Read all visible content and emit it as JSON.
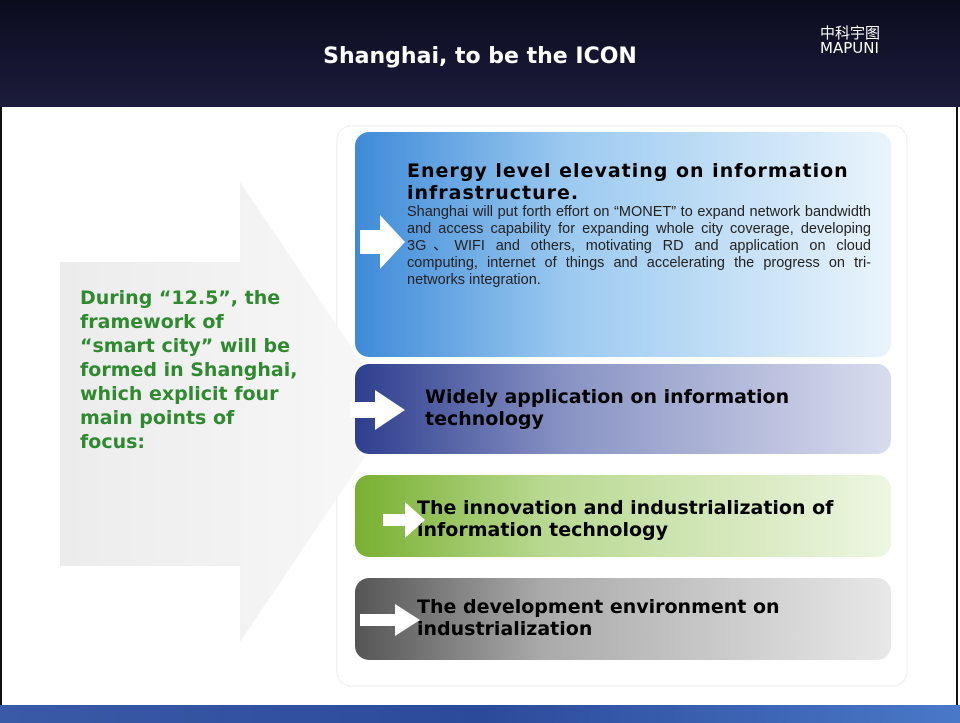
{
  "header": {
    "title": "Shanghai, to be the ICON",
    "logo_cn": "中科宇图",
    "logo_en": "MAPUNI"
  },
  "left_text": "During “12.5”, the framework of “smart city” will be formed in Shanghai, which explicit four main points of focus:",
  "points": [
    {
      "heading": "Energy level elevating on information infrastructure.",
      "body": "Shanghai will put forth effort on “MONET” to expand network bandwidth and access capability for expanding whole city coverage, developing 3G、WIFI and others, motivating RD and application on cloud computing, internet of things and accelerating the progress on tri-networks integration."
    },
    {
      "heading": "Widely application on information technology"
    },
    {
      "heading": "The innovation and industrialization of information technology"
    },
    {
      "heading": "The development environment on industrialization"
    }
  ]
}
